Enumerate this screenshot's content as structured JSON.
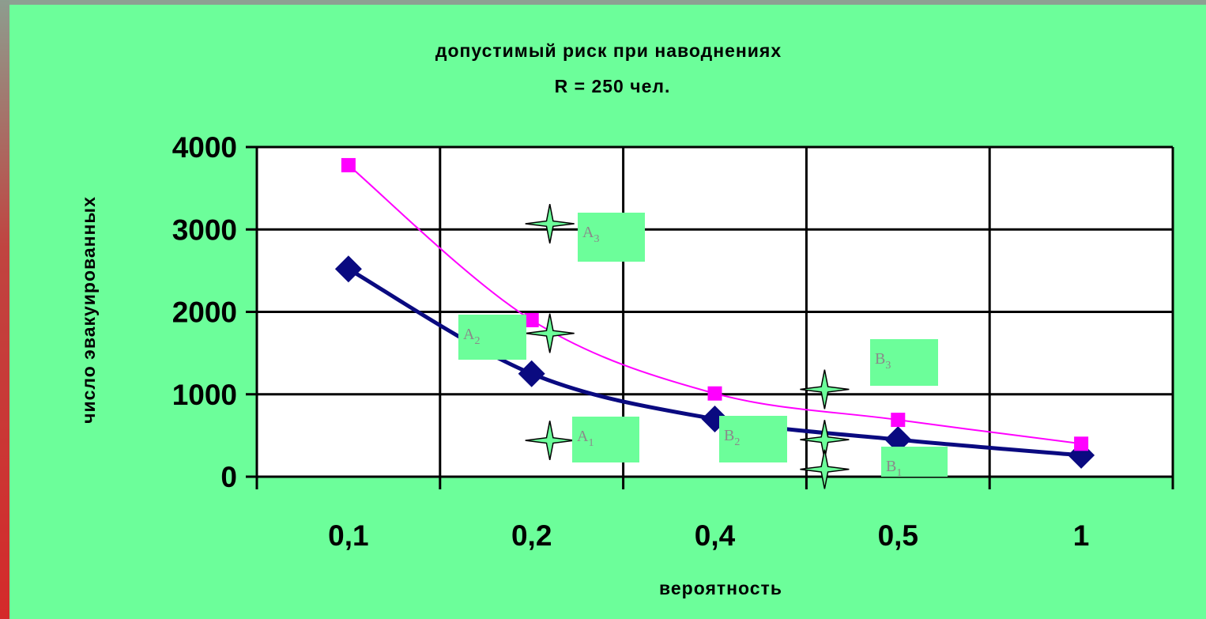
{
  "chart_data": {
    "type": "line",
    "title": "допустимый риск при наводнениях",
    "subtitle": "R = 250 чел.",
    "xlabel": "вероятность",
    "ylabel": "число эвакуированных",
    "categories": [
      "0,1",
      "0,2",
      "0,4",
      "0,5",
      "1"
    ],
    "ylim": [
      0,
      4000
    ],
    "yticks": [
      0,
      1000,
      2000,
      3000,
      4000
    ],
    "grid": true,
    "series": [
      {
        "values": [
          2520,
          1250,
          700,
          450,
          260
        ],
        "color": "#0a0a80",
        "marker": "diamond"
      },
      {
        "values": [
          3780,
          1900,
          1010,
          690,
          400
        ],
        "color": "#ff00ff",
        "marker": "square"
      }
    ],
    "annotations": [
      {
        "letter": "A",
        "sub": "3"
      },
      {
        "letter": "A",
        "sub": "2"
      },
      {
        "letter": "A",
        "sub": "1"
      },
      {
        "letter": "B",
        "sub": "3"
      },
      {
        "letter": "B",
        "sub": "2"
      },
      {
        "letter": "B",
        "sub": "1"
      }
    ],
    "star_markers": [
      {
        "x": 0.2,
        "y": 3070
      },
      {
        "x": 0.2,
        "y": 1740
      },
      {
        "x": 0.2,
        "y": 440
      },
      {
        "x": 0.45,
        "y": 1060
      },
      {
        "x": 0.45,
        "y": 450
      },
      {
        "x": 0.45,
        "y": 90
      }
    ]
  }
}
